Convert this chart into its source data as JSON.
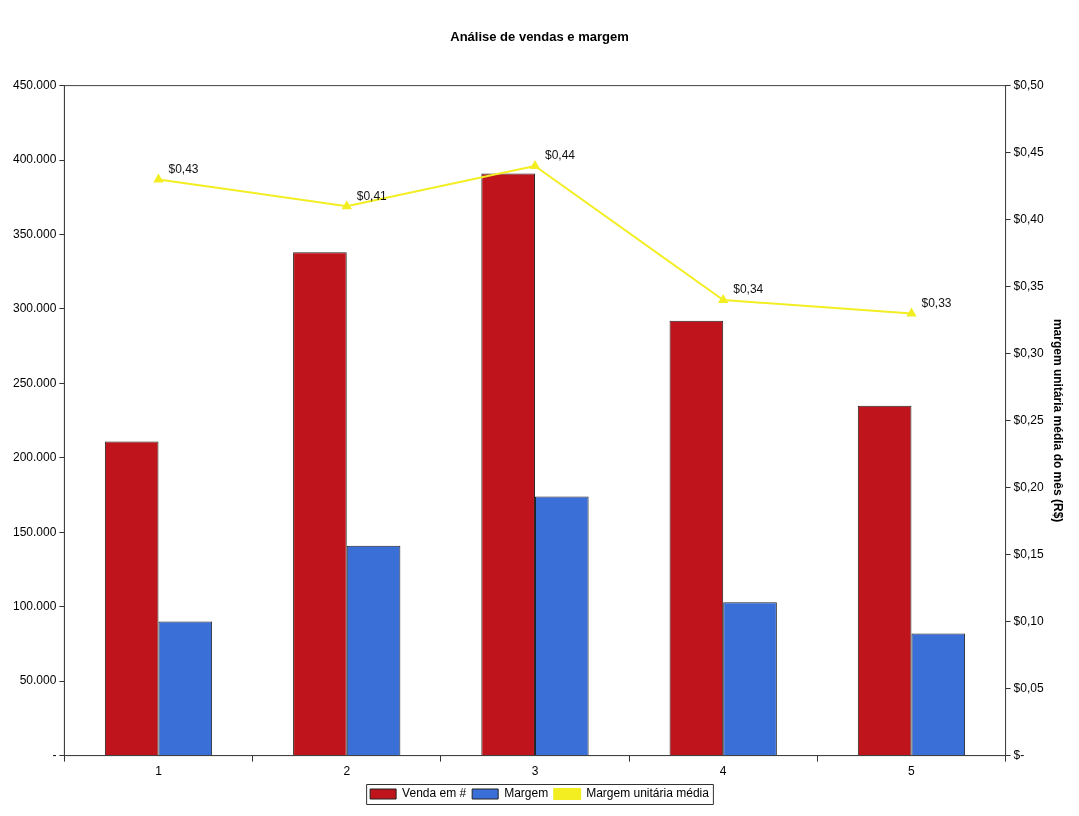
{
  "chart_data": {
    "type": "bar",
    "title": "Análise de vendas e margem",
    "y2label": "margem unitária média do mês (R$)",
    "categories": [
      "1",
      "2",
      "3",
      "4",
      "5"
    ],
    "series": [
      {
        "name": "Venda em #",
        "color": "#c0141c",
        "values": [
          211000,
          338000,
          391000,
          292000,
          235000
        ]
      },
      {
        "name": "Margem",
        "color": "#3b6fd8",
        "values": [
          90000,
          141000,
          174000,
          103000,
          82000
        ]
      },
      {
        "name": "Margem unitária média",
        "type": "line",
        "axis": "y2",
        "color": "#f2ee22",
        "values": [
          0.43,
          0.41,
          0.44,
          0.34,
          0.33
        ],
        "value_labels": [
          "$0,43",
          "$0,41",
          "$0,44",
          "$0,34",
          "$0,33"
        ]
      }
    ],
    "ylim": [
      0,
      450000
    ],
    "yticks": [
      {
        "value": 0,
        "label": "-"
      },
      {
        "value": 50000,
        "label": "50.000"
      },
      {
        "value": 100000,
        "label": "100.000"
      },
      {
        "value": 150000,
        "label": "150.000"
      },
      {
        "value": 200000,
        "label": "200.000"
      },
      {
        "value": 250000,
        "label": "250.000"
      },
      {
        "value": 300000,
        "label": "300.000"
      },
      {
        "value": 350000,
        "label": "350.000"
      },
      {
        "value": 400000,
        "label": "400.000"
      },
      {
        "value": 450000,
        "label": "450.000"
      }
    ],
    "y2lim": [
      0,
      0.5
    ],
    "y2ticks": [
      {
        "value": 0,
        "label": "$-"
      },
      {
        "value": 0.05,
        "label": "$0,05"
      },
      {
        "value": 0.1,
        "label": "$0,10"
      },
      {
        "value": 0.15,
        "label": "$0,15"
      },
      {
        "value": 0.2,
        "label": "$0,20"
      },
      {
        "value": 0.25,
        "label": "$0,25"
      },
      {
        "value": 0.3,
        "label": "$0,30"
      },
      {
        "value": 0.35,
        "label": "$0,35"
      },
      {
        "value": 0.4,
        "label": "$0,40"
      },
      {
        "value": 0.45,
        "label": "$0,45"
      },
      {
        "value": 0.5,
        "label": "$0,50"
      }
    ],
    "grid": false,
    "legend": "bottom",
    "marker": "triangle",
    "line_style": "solid"
  }
}
